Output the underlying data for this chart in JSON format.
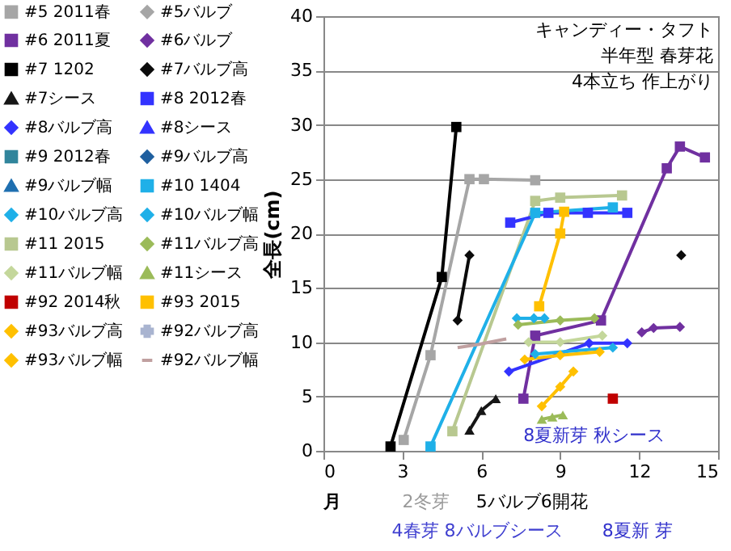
{
  "chart_data": {
    "type": "line",
    "title": "キャンディー・タフト",
    "subtitle": "半年型 春芽花\n4本立ち 作上がり",
    "ylabel": "全長(cm)",
    "xlim": [
      0,
      15
    ],
    "xticks": [
      0,
      3,
      6,
      9,
      12,
      15
    ],
    "ylim": [
      0,
      40
    ],
    "yticks": [
      0,
      5,
      10,
      15,
      20,
      25,
      30,
      35,
      40
    ],
    "grid": "y",
    "legend": "top left",
    "annotations": [
      "月",
      "2冬芽",
      "4春芽 8バルブシース",
      "5バルブ6開花",
      "8夏新 芽",
      "8夏新芽 秋シース"
    ],
    "series": [
      {
        "name": "#5 2011春",
        "color": "#a6a6a6",
        "marker": "square",
        "x": [
          3.05,
          4.07,
          5.55,
          6.1,
          8.05
        ],
        "values": [
          1.0,
          8.8,
          25.0,
          25.0,
          24.9
        ]
      },
      {
        "name": "#6 2011夏",
        "color": "#7030a0",
        "marker": "square",
        "x": [
          7.6,
          8.05,
          10.55,
          13.05,
          13.55,
          14.5
        ],
        "values": [
          4.8,
          10.6,
          12.0,
          26.0,
          28.0,
          27.0
        ]
      },
      {
        "name": "#7 1202",
        "color": "#000000",
        "marker": "square",
        "x": [
          2.55,
          4.5,
          5.05
        ],
        "values": [
          0.4,
          16.0,
          29.8
        ]
      },
      {
        "name": "#7シース",
        "color": "#161616",
        "marker": "triangle",
        "x": [
          5.55,
          6.0,
          6.55
        ],
        "values": [
          1.9,
          3.7,
          4.8
        ]
      },
      {
        "name": "#8バルブ高",
        "color": "#3333ff",
        "marker": "diamond",
        "x": [
          7.05,
          10.1,
          11.55
        ],
        "values": [
          7.3,
          9.9,
          9.9
        ]
      },
      {
        "name": "#9 2012春",
        "color": "#31859c",
        "marker": "square"
      },
      {
        "name": "#9バルブ幅",
        "color": "#1f6fb0",
        "marker": "triangle"
      },
      {
        "name": "#10バルブ高",
        "color": "#1fb0e8",
        "marker": "diamond",
        "x": [
          8.05,
          11.0
        ],
        "values": [
          8.9,
          9.5
        ]
      },
      {
        "name": "#11 2015",
        "color": "#b8c890",
        "marker": "square",
        "x": [
          4.9,
          8.05,
          9.0,
          11.35
        ],
        "values": [
          1.8,
          23.0,
          23.3,
          23.5
        ]
      },
      {
        "name": "#11バルブ幅",
        "color": "#c4d79b",
        "marker": "diamond",
        "x": [
          7.8,
          9.0,
          10.6
        ],
        "values": [
          10.0,
          10.0,
          10.6
        ]
      },
      {
        "name": "#92 2014秋",
        "color": "#c00000",
        "marker": "square",
        "x": [
          11.0
        ],
        "values": [
          4.8
        ]
      },
      {
        "name": "#93バルブ高",
        "color": "#ffc000",
        "marker": "diamond",
        "x": [
          8.3,
          9.0,
          9.5
        ],
        "values": [
          4.1,
          5.9,
          7.3
        ]
      },
      {
        "name": "#93バルブ幅",
        "color": "#ffc000",
        "marker": "diamond",
        "x": [
          7.65,
          9.0,
          10.5
        ],
        "values": [
          8.4,
          8.8,
          9.1
        ]
      },
      {
        "name": "#5バルブ",
        "color": "#a6a6a6",
        "marker": "diamond"
      },
      {
        "name": "#6バルブ",
        "color": "#7030a0",
        "marker": "diamond",
        "x": [
          12.1,
          12.55,
          13.55
        ],
        "values": [
          10.9,
          11.3,
          11.4
        ]
      },
      {
        "name": "#7バルブ高",
        "color": "#0b0b0b",
        "marker": "diamond",
        "x": [
          5.1,
          5.55,
          null,
          13.6
        ],
        "values": [
          12.0,
          18.0,
          null,
          18.0
        ]
      },
      {
        "name": "#8 2012春",
        "color": "#3333ff",
        "marker": "square",
        "x": [
          7.1,
          8.55,
          10.05,
          11.55
        ],
        "values": [
          21.0,
          21.9,
          21.9,
          21.9
        ]
      },
      {
        "name": "#8シース",
        "color": "#3333ff",
        "marker": "triangle"
      },
      {
        "name": "#9バルブ高",
        "color": "#1f5f9f",
        "marker": "diamond"
      },
      {
        "name": "#10 1404",
        "color": "#1fb0e8",
        "marker": "square",
        "x": [
          4.07,
          8.05,
          11.0
        ],
        "values": [
          0.4,
          21.9,
          22.4
        ]
      },
      {
        "name": "#10バルブ幅",
        "color": "#1fb0e8",
        "marker": "diamond",
        "x": [
          7.35,
          8.0,
          8.4
        ],
        "values": [
          12.2,
          12.2,
          12.2
        ]
      },
      {
        "name": "#11バルブ高",
        "color": "#9bbb59",
        "marker": "diamond",
        "x": [
          7.4,
          9.0,
          10.3
        ],
        "values": [
          11.6,
          12.0,
          12.2
        ]
      },
      {
        "name": "#11シース",
        "color": "#9bbb59",
        "marker": "triangle",
        "x": [
          8.3,
          8.7,
          9.1
        ],
        "values": [
          2.9,
          3.1,
          3.3
        ]
      },
      {
        "name": "#93 2015",
        "color": "#ffc000",
        "marker": "square",
        "x": [
          8.2,
          9.0,
          9.15
        ],
        "values": [
          13.3,
          20.0,
          22.0
        ]
      },
      {
        "name": "#92バルブ高",
        "color": "#a9b4d0",
        "marker": "cross"
      },
      {
        "name": "#92バルブ幅",
        "color": "#c0a0a0",
        "marker": "none",
        "x": [
          5.1,
          5.9,
          6.95
        ],
        "values": [
          9.5,
          9.8,
          10.3
        ]
      }
    ]
  }
}
